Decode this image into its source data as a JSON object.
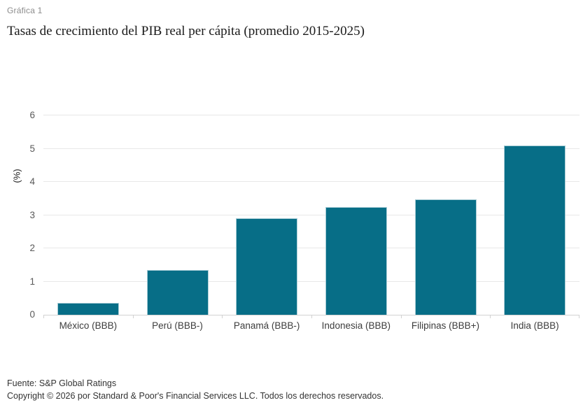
{
  "header": {
    "kicker": "Gráfica 1",
    "title": "Tasas de crecimiento del PIB real per cápita (promedio 2015-2025)"
  },
  "chart_data": {
    "type": "bar",
    "title": "Tasas de crecimiento del PIB real per cápita (promedio 2015-2025)",
    "categories": [
      "México (BBB)",
      "Perú (BBB-)",
      "Panamá (BBB-)",
      "Indonesia (BBB)",
      "Filipinas (BBB+)",
      "India (BBB)"
    ],
    "values": [
      0.35,
      1.35,
      2.9,
      3.25,
      3.48,
      5.1
    ],
    "xlabel": "",
    "ylabel": "(%)",
    "ylim": [
      0,
      6
    ],
    "yticks": [
      0,
      1,
      2,
      3,
      4,
      5,
      6
    ],
    "grid": "horizontal",
    "legend": "none",
    "bar_color": "#076e87",
    "bar_edge_color": "#a9cdd6",
    "gridline_color": "#e8e8e8",
    "axis_line_color": "#d2d2d2"
  },
  "footer": {
    "source": "Fuente: S&P Global Ratings",
    "copyright": "Copyright © 2026 por Standard & Poor's Financial Services LLC. Todos los derechos reservados."
  }
}
